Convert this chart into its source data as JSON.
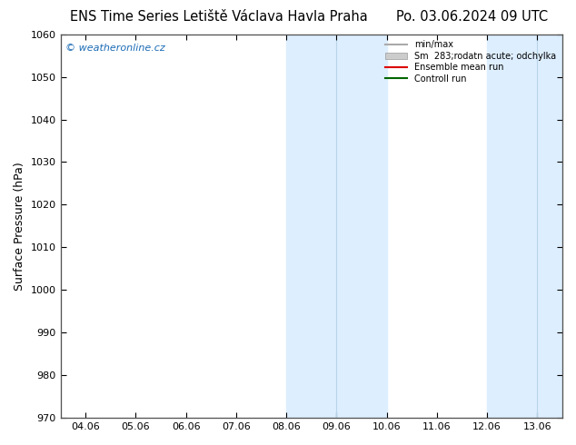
{
  "title_left": "ENS Time Series Letiště Václava Havla Praha",
  "title_right": "Po. 03.06.2024 09 UTC",
  "ylabel": "Surface Pressure (hPa)",
  "ylim": [
    970,
    1060
  ],
  "yticks": [
    970,
    980,
    990,
    1000,
    1010,
    1020,
    1030,
    1040,
    1050,
    1060
  ],
  "x_labels": [
    "04.06",
    "05.06",
    "06.06",
    "07.06",
    "08.06",
    "09.06",
    "10.06",
    "11.06",
    "12.06",
    "13.06"
  ],
  "x_values": [
    0,
    1,
    2,
    3,
    4,
    5,
    6,
    7,
    8,
    9
  ],
  "xlim": [
    -0.5,
    9.5
  ],
  "shaded_bands": [
    {
      "x_start": 4.0,
      "x_end": 5.0,
      "color": "#ddeeff",
      "alpha": 1.0
    },
    {
      "x_start": 5.0,
      "x_end": 6.0,
      "color": "#ddeeff",
      "alpha": 1.0
    },
    {
      "x_start": 8.0,
      "x_end": 9.0,
      "color": "#ddeeff",
      "alpha": 1.0
    },
    {
      "x_start": 9.0,
      "x_end": 9.5,
      "color": "#ddeeff",
      "alpha": 1.0
    }
  ],
  "band_dividers": [
    5.0,
    9.0
  ],
  "watermark": "© weatheronline.cz",
  "watermark_color": "#1a6bb5",
  "background_color": "#ffffff",
  "plot_background": "#ffffff",
  "legend_items": [
    {
      "label": "min/max",
      "type": "line",
      "color": "#aaaaaa"
    },
    {
      "label": "Sm  283;rodatn acute; odchylka",
      "type": "fill",
      "facecolor": "#cccccc",
      "edgecolor": "#999999"
    },
    {
      "label": "Ensemble mean run",
      "type": "line",
      "color": "#dd0000"
    },
    {
      "label": "Controll run",
      "type": "line",
      "color": "#006600"
    }
  ],
  "title_fontsize": 10.5,
  "tick_fontsize": 8,
  "ylabel_fontsize": 9,
  "fig_width": 6.34,
  "fig_height": 4.9,
  "dpi": 100
}
